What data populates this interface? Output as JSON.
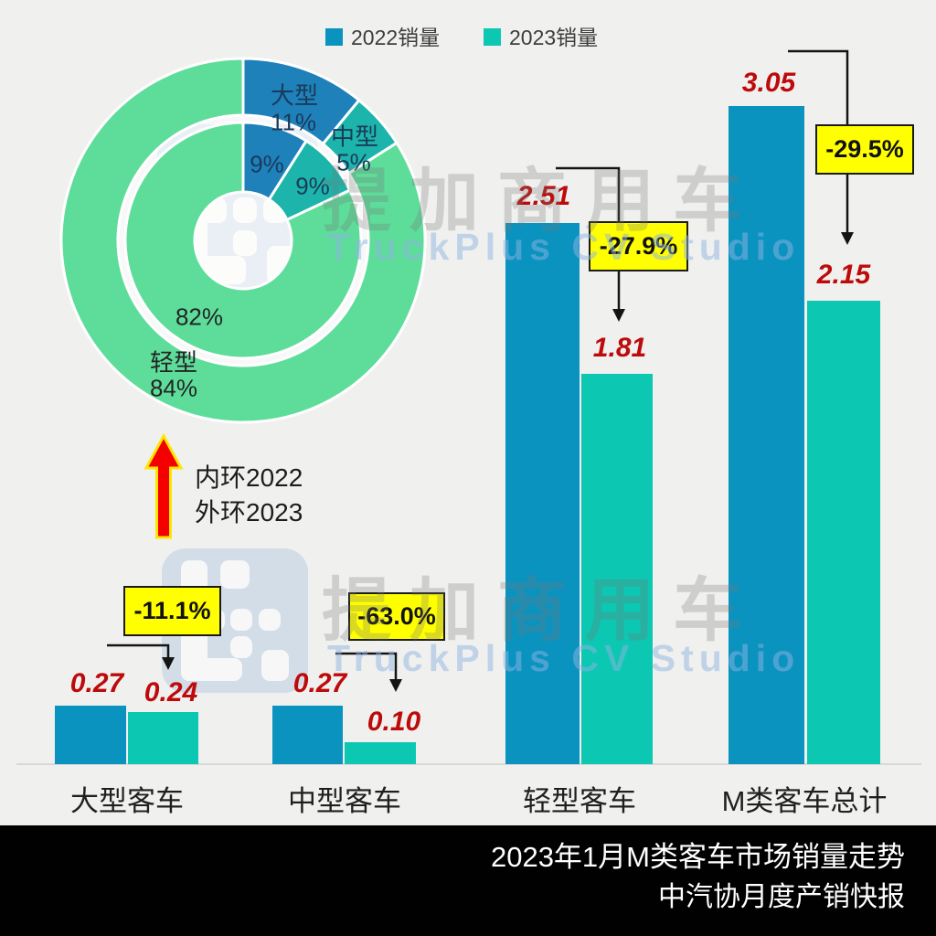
{
  "page": {
    "background": "#f0f0ef"
  },
  "legend": {
    "items": [
      {
        "label": "2022销量",
        "color": "#0b93c0"
      },
      {
        "label": "2023销量",
        "color": "#0cc7b2"
      }
    ]
  },
  "chart_data": [
    {
      "type": "bar",
      "title": "2023年1月M类客车市场销量走势",
      "categories": [
        "大型客车",
        "中型客车",
        "轻型客车",
        "M类客车总计"
      ],
      "series": [
        {
          "name": "2022销量",
          "color": "#0b93c0",
          "values": [
            0.27,
            0.27,
            2.51,
            3.05
          ]
        },
        {
          "name": "2023销量",
          "color": "#0cc7b2",
          "values": [
            0.24,
            0.1,
            1.81,
            2.15
          ]
        }
      ],
      "value_labels": [
        [
          "0.27",
          "0.24"
        ],
        [
          "0.27",
          "0.10"
        ],
        [
          "2.51",
          "1.81"
        ],
        [
          "3.05",
          "2.15"
        ]
      ],
      "change_labels": [
        "-11.1%",
        "-63.0%",
        "-27.9%",
        "-29.5%"
      ],
      "ylim": [
        0,
        3.4
      ],
      "value_label_color": "#bd0a0a",
      "callout_bg": "#ffff00",
      "legend_position": "top"
    },
    {
      "type": "pie",
      "subtype": "nested-donut",
      "categories": [
        "大型",
        "中型",
        "轻型"
      ],
      "colors": [
        "#1e81ba",
        "#1db5ab",
        "#5edd9a"
      ],
      "rings": [
        {
          "name": "内环2022",
          "position": "inner",
          "values": [
            9,
            9,
            82
          ],
          "labels": [
            "9%",
            "9%",
            "82%"
          ]
        },
        {
          "name": "外环2023",
          "position": "outer",
          "values": [
            11,
            5,
            84
          ],
          "labels": [
            "11%",
            "5%",
            "84%"
          ]
        }
      ]
    }
  ],
  "donut_note": {
    "line1": "内环2022",
    "line2": "外环2023"
  },
  "watermark": {
    "cn": "提加商用车",
    "en": "TruckPlus CV Studio"
  },
  "footer": {
    "line1": "2023年1月M类客车市场销量走势",
    "line2": "中汽协月度产销快报"
  }
}
